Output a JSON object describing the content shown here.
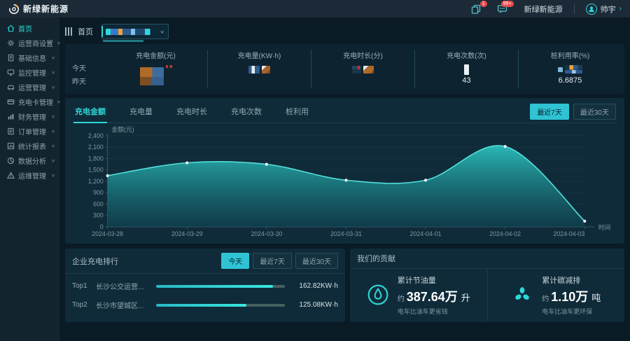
{
  "navbar": {
    "brand": "新绿新能源",
    "doc_badge": "1",
    "msg_badge": "99+",
    "org_name": "新绿新能源",
    "user_name": "帅宇",
    "chevron": "＞"
  },
  "sidebar": {
    "items": [
      {
        "label": "首页",
        "icon": "home-icon",
        "active": true
      },
      {
        "label": "运营商设置",
        "icon": "gear-icon"
      },
      {
        "label": "基础信息",
        "icon": "document-icon"
      },
      {
        "label": "监控管理",
        "icon": "monitor-icon"
      },
      {
        "label": "运营管理",
        "icon": "car-icon"
      },
      {
        "label": "充电卡管理",
        "icon": "card-icon"
      },
      {
        "label": "财务管理",
        "icon": "finance-icon"
      },
      {
        "label": "订单管理",
        "icon": "order-icon"
      },
      {
        "label": "统计报表",
        "icon": "report-icon"
      },
      {
        "label": "数据分析",
        "icon": "data-icon"
      },
      {
        "label": "运维管理",
        "icon": "ops-icon"
      }
    ]
  },
  "header": {
    "breadcrumb": "首页"
  },
  "stats": {
    "row_labels": [
      "今天",
      "昨天"
    ],
    "columns": [
      {
        "title": "充电金额(元)"
      },
      {
        "title": "充电量(KW·h)"
      },
      {
        "title": "充电时长(分)"
      },
      {
        "title": "充电次数(次)",
        "yesterday": "43"
      },
      {
        "title": "桩利用率(%)",
        "yesterday": "6.6875"
      }
    ]
  },
  "chart_panel": {
    "tabs": [
      "充电金额",
      "充电量",
      "充电时长",
      "充电次数",
      "桩利用"
    ],
    "active_tab": "充电金额",
    "range_buttons": [
      "最近7天",
      "最近30天"
    ],
    "active_range": "最近7天"
  },
  "chart_data": {
    "type": "area",
    "title": "",
    "ylabel": "金额(元)",
    "xlabel": "时间",
    "categories": [
      "2024-03-28",
      "2024-03-29",
      "2024-03-30",
      "2024-03-31",
      "2024-04-01",
      "2024-04-02",
      "2024-04-03"
    ],
    "values": [
      1350,
      1690,
      1650,
      1230,
      1230,
      2120,
      150
    ],
    "ylim": [
      0,
      2400
    ],
    "ytick_step": 300,
    "grid": true,
    "line_color": "#52e0da",
    "area_top_color": "#2cc0bd",
    "area_bottom_color": "#0f4a57",
    "dot_color": "#ffffff"
  },
  "ranking_panel": {
    "title": "企业充电排行",
    "buttons": [
      "今天",
      "最近7天",
      "最近30天"
    ],
    "active_button": "今天",
    "rows": [
      {
        "rank": "Top1",
        "name": "长沙公交运营...",
        "value": "162.82KW·h",
        "percent": 91
      },
      {
        "rank": "Top2",
        "name": "长沙市望城区...",
        "value": "125.08KW·h",
        "percent": 70
      }
    ]
  },
  "contribution_panel": {
    "title": "我们的贡献",
    "items": [
      {
        "icon": "oil-drop-icon",
        "title": "累计节油量",
        "prefix": "约",
        "value": "387.64万",
        "unit": "升",
        "subtitle": "电车比油车更省钱"
      },
      {
        "icon": "carbon-fan-icon",
        "title": "累计碳减排",
        "prefix": "约",
        "value": "1.10万",
        "unit": "吨",
        "subtitle": "电车比油车更环保"
      }
    ]
  },
  "colors": {
    "accent": "#2fd8d8",
    "panel_bg": "#0f2b39",
    "page_bg": "#0a1b26",
    "badge_red": "#e84c4c"
  }
}
